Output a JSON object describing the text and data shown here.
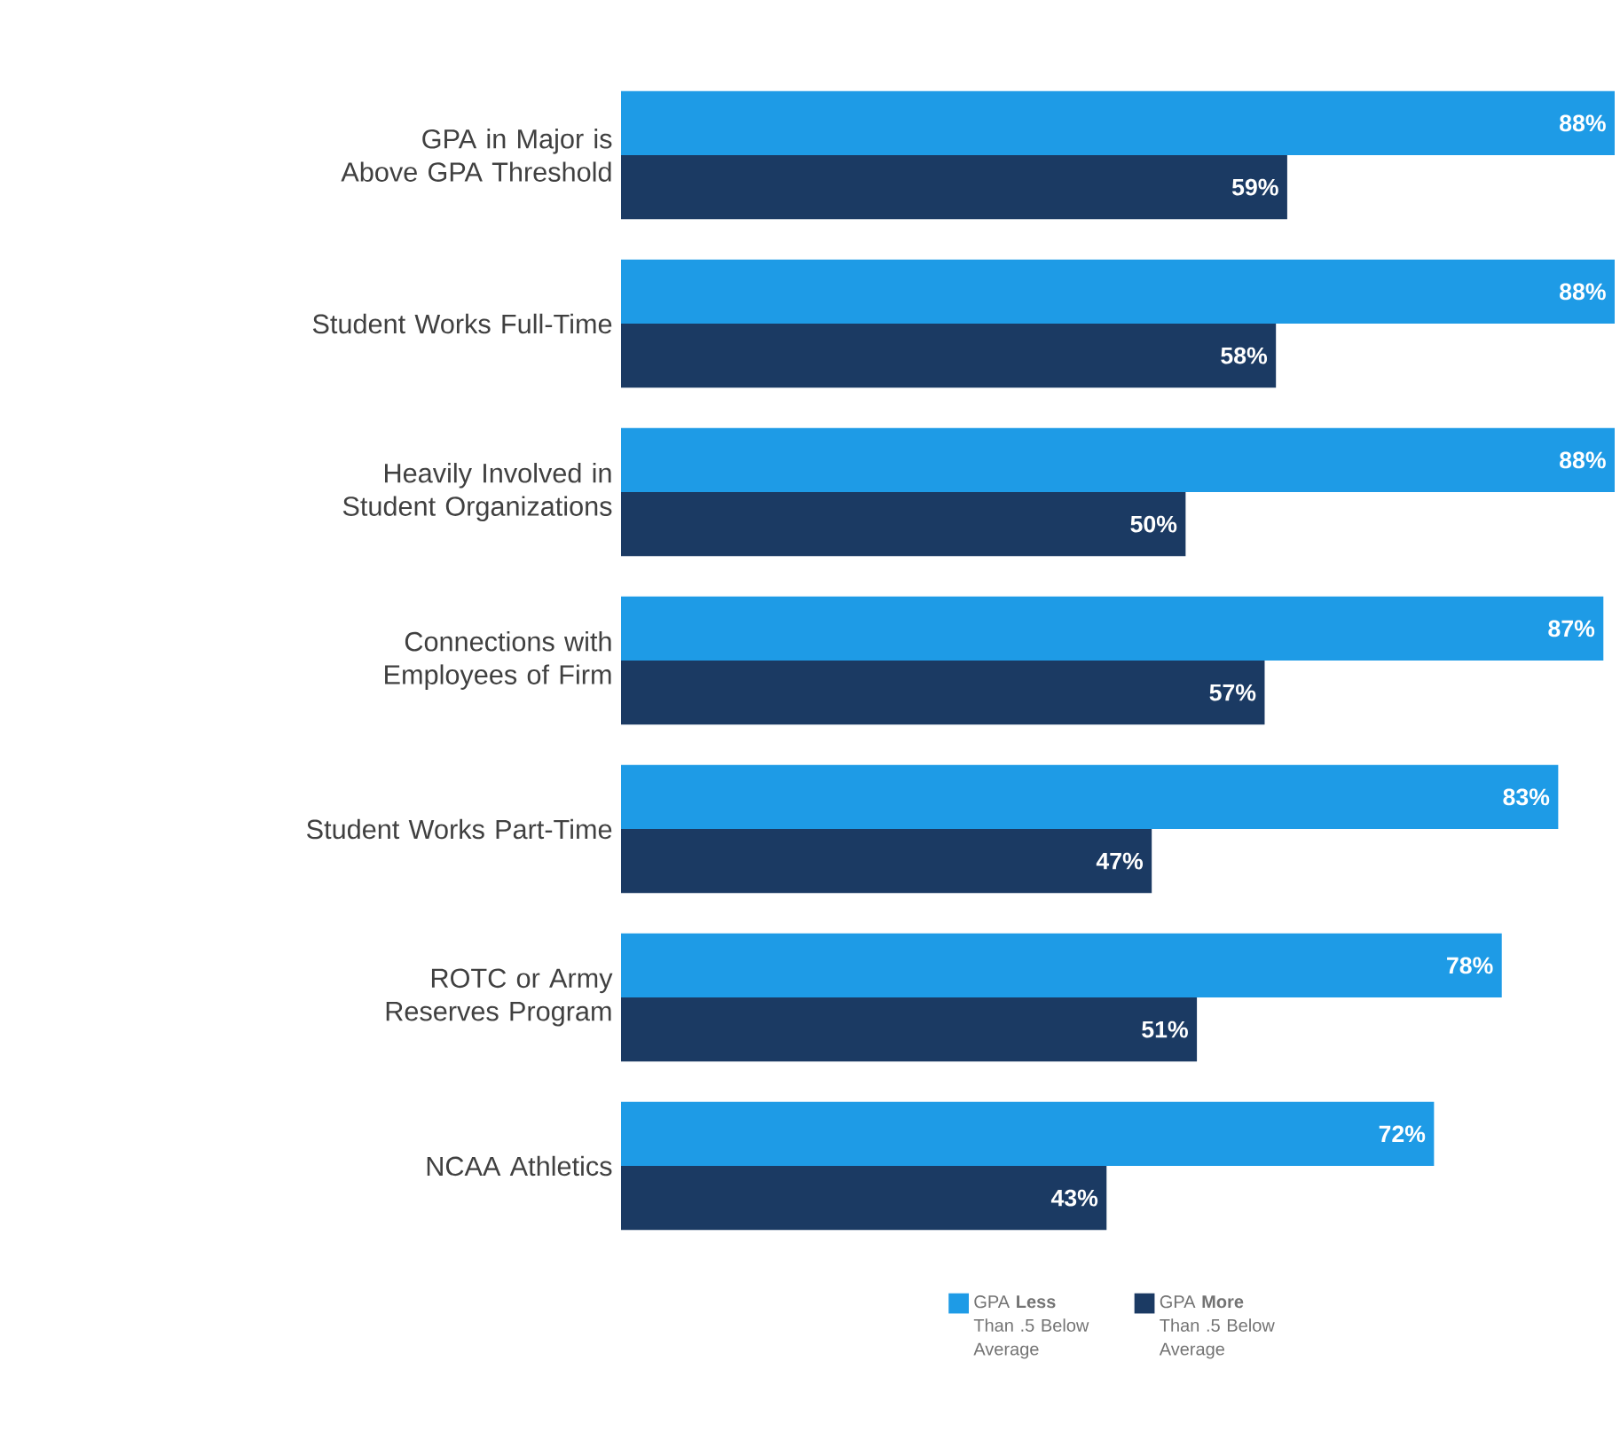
{
  "chart_data": {
    "type": "bar",
    "orientation": "horizontal",
    "categories": [
      "GPA in Major is Above GPA Threshold",
      "Student Works Full-Time",
      "Heavily Involved in Student Organizations",
      "Connections with Employees of Firm",
      "Student Works Part-Time",
      "ROTC or Army Reserves Program",
      "NCAA Athletics"
    ],
    "series": [
      {
        "name": "GPA **Less** Than .5 Below Average",
        "color": "#1e9be6",
        "values": [
          88,
          88,
          88,
          87,
          83,
          78,
          72
        ],
        "value_labels": [
          "88%",
          "88%",
          "88%",
          "87%",
          "83%",
          "78%",
          "72%"
        ]
      },
      {
        "name": "GPA **More** Than .5 Below Average",
        "color": "#1b3a63",
        "values": [
          59,
          58,
          50,
          57,
          47,
          51,
          43
        ],
        "value_labels": [
          "59%",
          "58%",
          "50%",
          "57%",
          "47%",
          "51%",
          "43%"
        ]
      }
    ],
    "legend": "bottom"
  }
}
